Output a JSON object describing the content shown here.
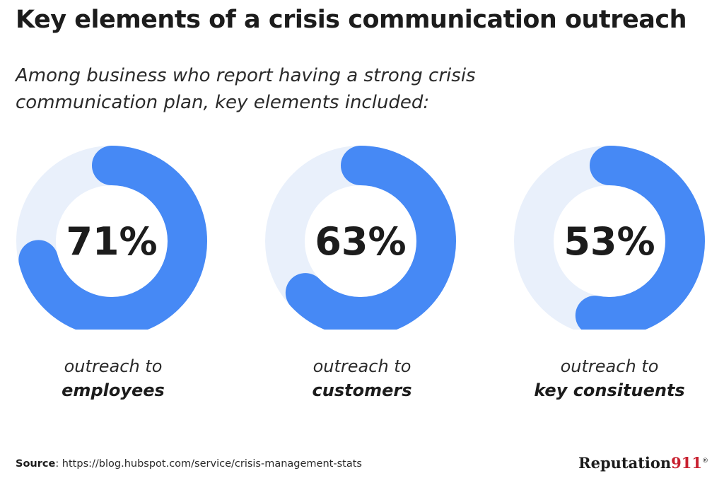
{
  "title": "Key elements of a crisis communication outreach",
  "subtitle": "Among business who report having a strong crisis communication plan, key elements included:",
  "colors": {
    "fill": "#4689f5",
    "track": "#e9f0fb",
    "text": "#1c1c1c",
    "brand_accent": "#c8202f"
  },
  "chart_data": {
    "type": "pie",
    "series": [
      {
        "value": 71,
        "label": "71%",
        "caption_line1": "outreach to",
        "caption_line2": "employees"
      },
      {
        "value": 63,
        "label": "63%",
        "caption_line1": "outreach to",
        "caption_line2": "customers"
      },
      {
        "value": 53,
        "label": "53%",
        "caption_line1": "outreach to",
        "caption_line2": "key consituents"
      }
    ]
  },
  "footer": {
    "source_label": "Source",
    "source_url": ": https://blog.hubspot.com/service/crisis-management-stats",
    "brand_name": "Reputation",
    "brand_number": "911",
    "brand_mark": "®"
  }
}
